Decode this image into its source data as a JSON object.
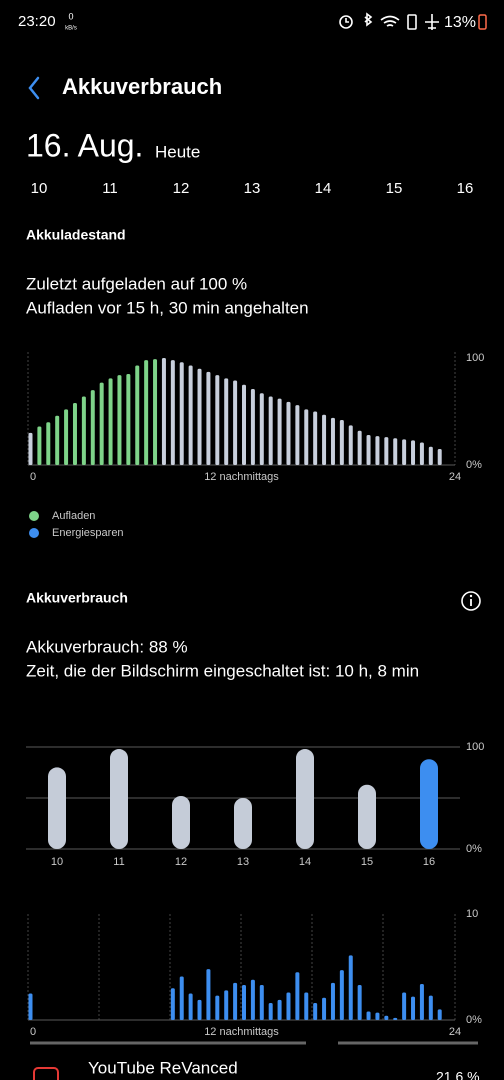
{
  "status_bar": {
    "time": "23:20",
    "speed_value": "0",
    "speed_unit": "kB/s",
    "battery": "13%"
  },
  "header": {
    "title": "Akkuverbrauch"
  },
  "date": {
    "day": "16. Aug.",
    "relative": "Heute"
  },
  "day_tabs": [
    "10",
    "11",
    "12",
    "13",
    "14",
    "15",
    "16"
  ],
  "battery_level": {
    "heading": "Akkuladestand",
    "lines": [
      "Zuletzt aufgeladen auf 100 %",
      "Aufladen vor 15 h, 30 min angehalten"
    ],
    "chart": {
      "type": "bar",
      "x": [
        0,
        0.5,
        1,
        1.5,
        2,
        2.5,
        3,
        3.5,
        4,
        4.5,
        5,
        5.5,
        6,
        6.5,
        7,
        7.5,
        8,
        8.5,
        9,
        9.5,
        10,
        10.5,
        11,
        11.5,
        12,
        12.5,
        13,
        13.5,
        14,
        14.5,
        15,
        15.5,
        16,
        16.5,
        17,
        17.5,
        18,
        18.5,
        19,
        19.5,
        20,
        20.5,
        21,
        21.5,
        22,
        22.5,
        23
      ],
      "values": [
        30,
        36,
        40,
        46,
        52,
        58,
        64,
        70,
        77,
        81,
        84,
        85,
        93,
        98,
        99,
        100,
        98,
        96,
        93,
        90,
        87,
        84,
        81,
        79,
        75,
        71,
        67,
        64,
        62,
        59,
        56,
        52,
        50,
        47,
        44,
        42,
        37,
        32,
        28,
        27,
        26,
        25,
        24,
        23,
        21,
        17,
        15
      ],
      "colors": [
        "#c8cfdc",
        "#7ed389",
        "#7ed389",
        "#7ed389",
        "#7ed389",
        "#7ed389",
        "#7ed389",
        "#7ed389",
        "#7ed389",
        "#7ed389",
        "#7ed389",
        "#7ed389",
        "#7ed389",
        "#7ed389",
        "#7ed389",
        "#c8cfdc",
        "#c8cfdc",
        "#c8cfdc",
        "#c8cfdc",
        "#c8cfdc",
        "#c8cfdc",
        "#c8cfdc",
        "#c8cfdc",
        "#c8cfdc",
        "#c8cfdc",
        "#c8cfdc",
        "#c8cfdc",
        "#c8cfdc",
        "#c8cfdc",
        "#c8cfdc",
        "#c8cfdc",
        "#c8cfdc",
        "#c8cfdc",
        "#c8cfdc",
        "#c8cfdc",
        "#c8cfdc",
        "#c8cfdc",
        "#c8cfdc",
        "#c8cfdc",
        "#c8cfdc",
        "#c8cfdc",
        "#c8cfdc",
        "#c8cfdc",
        "#c8cfdc",
        "#c8cfdc",
        "#c8cfdc",
        "#c8cfdc"
      ],
      "xlim": [
        0,
        24
      ],
      "xticks": [
        0,
        {
          "value": 12,
          "label": "12 nachmittags"
        },
        24
      ],
      "ylim": [
        0,
        100
      ],
      "yticks": [
        {
          "value": 0,
          "label": "0%"
        },
        100
      ],
      "grid": false
    },
    "legend": [
      {
        "name": "Aufladen",
        "color": "#7ed389"
      },
      {
        "name": "Energiesparen",
        "color": "#3d8ef0"
      }
    ]
  },
  "usage": {
    "heading": "Akkuverbrauch",
    "lines": [
      "Akkuverbrauch: 88 %",
      "Zeit, die der Bildschirm eingeschaltet ist: 10 h, 8 min"
    ],
    "daily_chart": {
      "type": "bar",
      "categories": [
        "10",
        "11",
        "12",
        "13",
        "14",
        "15",
        "16"
      ],
      "values": [
        80,
        98,
        52,
        50,
        98,
        63,
        88
      ],
      "colors": [
        "#c5ccd8",
        "#c5ccd8",
        "#c5ccd8",
        "#c5ccd8",
        "#c5ccd8",
        "#c5ccd8",
        "#3d8ef0"
      ],
      "ylim": [
        0,
        100
      ],
      "yticks": [
        {
          "value": 0,
          "label": "0%"
        },
        {
          "value": 50,
          "label": null
        },
        100
      ],
      "grid": true
    },
    "hourly_chart": {
      "type": "bar",
      "x": [
        0,
        8,
        8.5,
        9,
        9.5,
        10,
        10.5,
        11,
        11.5,
        12,
        12.5,
        13,
        13.5,
        14,
        14.5,
        15,
        15.5,
        16,
        16.5,
        17,
        17.5,
        18,
        18.5,
        19,
        19.5,
        20,
        20.5,
        21,
        21.5,
        22,
        22.5,
        23
      ],
      "values": [
        2.5,
        3.0,
        4.1,
        2.5,
        1.9,
        4.8,
        2.3,
        2.8,
        3.5,
        3.3,
        3.8,
        3.3,
        1.6,
        1.9,
        2.6,
        4.5,
        2.6,
        1.6,
        2.1,
        3.5,
        4.7,
        6.1,
        3.3,
        0.8,
        0.7,
        0.4,
        0.2,
        2.6,
        2.2,
        3.4,
        2.3,
        1.0
      ],
      "color": "#3d8ef0",
      "xlim": [
        0,
        24
      ],
      "xticks": [
        0,
        {
          "value": 12,
          "label": "12 nachmittags"
        },
        24
      ],
      "ylim": [
        0,
        10
      ],
      "yticks": [
        {
          "value": 0,
          "label": "0%"
        },
        10
      ],
      "grid": false
    }
  },
  "app_list": [
    {
      "name": "YouTube ReVanced",
      "value": "21,6 %"
    }
  ]
}
